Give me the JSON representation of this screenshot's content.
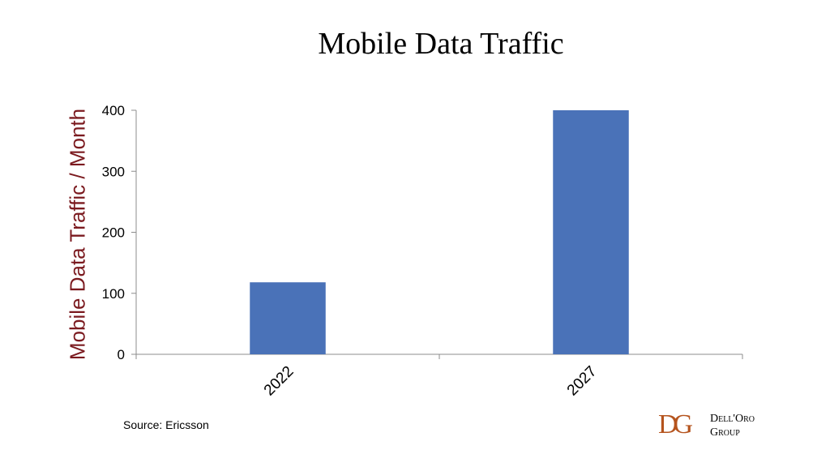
{
  "chart_data": {
    "type": "bar",
    "title": "Mobile Data Traffic",
    "ylabel": "Mobile Data Traffic / Month",
    "xlabel": "",
    "categories": [
      "2022",
      "2027"
    ],
    "values": [
      118,
      400
    ],
    "ylim": [
      0,
      400
    ],
    "yticks": [
      0,
      100,
      200,
      300,
      400
    ],
    "bar_color": "#4a72b8",
    "grid": false
  },
  "source": "Source: Ericsson",
  "logo": {
    "mark": "DG",
    "line1": "Dell'Oro",
    "line2": "Group"
  }
}
